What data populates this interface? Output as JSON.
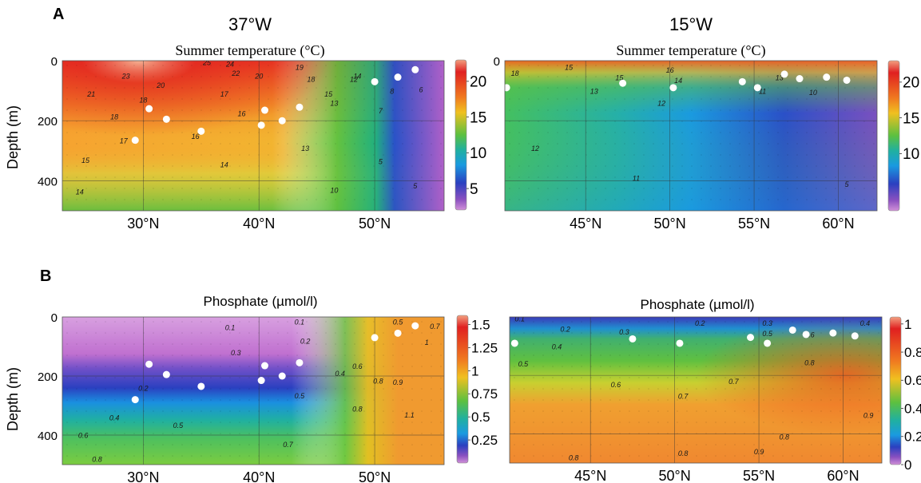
{
  "figure": {
    "panel_labels": [
      "A",
      "B"
    ],
    "column_headers": [
      "37°W",
      "15°W"
    ],
    "depth_label": "Depth (m)"
  },
  "chart_data": [
    {
      "type": "heatmap",
      "panel": "A",
      "section": "37°W",
      "title": "Summer temperature (°C)",
      "ylabel": "Depth (m)",
      "x_range": [
        23,
        56
      ],
      "x_unit": "°N",
      "x_ticks": [
        30,
        40,
        50
      ],
      "x_tick_labels": [
        "30°N",
        "40°N",
        "50°N"
      ],
      "y_range": [
        0,
        500
      ],
      "y_inverted": true,
      "y_ticks": [
        0,
        200,
        400
      ],
      "y_tick_labels": [
        "0",
        "200",
        "400"
      ],
      "colorbar": {
        "range": [
          2,
          23
        ],
        "ticks": [
          20,
          15,
          10,
          5
        ],
        "tick_labels": [
          "20",
          "15",
          "10",
          "5"
        ]
      },
      "contour_labels": [
        {
          "text": "25",
          "lat": 35.5,
          "depth": 15
        },
        {
          "text": "24",
          "lat": 37.5,
          "depth": 20
        },
        {
          "text": "23",
          "lat": 28.5,
          "depth": 60
        },
        {
          "text": "22",
          "lat": 38,
          "depth": 50
        },
        {
          "text": "21",
          "lat": 25.5,
          "depth": 120
        },
        {
          "text": "20",
          "lat": 31.5,
          "depth": 90
        },
        {
          "text": "20",
          "lat": 40,
          "depth": 60
        },
        {
          "text": "19",
          "lat": 43.5,
          "depth": 30
        },
        {
          "text": "18",
          "lat": 30,
          "depth": 140
        },
        {
          "text": "18",
          "lat": 44.5,
          "depth": 70
        },
        {
          "text": "18",
          "lat": 27.5,
          "depth": 195
        },
        {
          "text": "17",
          "lat": 37,
          "depth": 120
        },
        {
          "text": "17",
          "lat": 28.3,
          "depth": 275
        },
        {
          "text": "16",
          "lat": 38.5,
          "depth": 185
        },
        {
          "text": "16",
          "lat": 34.5,
          "depth": 260
        },
        {
          "text": "15",
          "lat": 46,
          "depth": 120
        },
        {
          "text": "15",
          "lat": 25,
          "depth": 340
        },
        {
          "text": "14",
          "lat": 48.5,
          "depth": 60
        },
        {
          "text": "14",
          "lat": 37,
          "depth": 355
        },
        {
          "text": "14",
          "lat": 24.5,
          "depth": 445
        },
        {
          "text": "13",
          "lat": 46.5,
          "depth": 150
        },
        {
          "text": "13",
          "lat": 44,
          "depth": 300
        },
        {
          "text": "12",
          "lat": 48.2,
          "depth": 70
        },
        {
          "text": "10",
          "lat": 46.5,
          "depth": 440
        },
        {
          "text": "8",
          "lat": 51.5,
          "depth": 110
        },
        {
          "text": "7",
          "lat": 50.5,
          "depth": 175
        },
        {
          "text": "6",
          "lat": 54,
          "depth": 105
        },
        {
          "text": "5",
          "lat": 50.5,
          "depth": 345
        },
        {
          "text": "5",
          "lat": 53.5,
          "depth": 425
        }
      ],
      "stations": [
        {
          "lat": 29.3,
          "depth": 265
        },
        {
          "lat": 30.5,
          "depth": 160
        },
        {
          "lat": 32,
          "depth": 195
        },
        {
          "lat": 35,
          "depth": 235
        },
        {
          "lat": 40.2,
          "depth": 215
        },
        {
          "lat": 40.5,
          "depth": 165
        },
        {
          "lat": 42,
          "depth": 200
        },
        {
          "lat": 43.5,
          "depth": 155
        },
        {
          "lat": 50,
          "depth": 70
        },
        {
          "lat": 52,
          "depth": 55
        },
        {
          "lat": 53.5,
          "depth": 30
        }
      ]
    },
    {
      "type": "heatmap",
      "panel": "A",
      "section": "15°W",
      "title": "Summer temperature (°C)",
      "x_range": [
        40.2,
        62.3
      ],
      "x_unit": "°N",
      "x_ticks": [
        45,
        50,
        55,
        60
      ],
      "x_tick_labels": [
        "45°N",
        "50°N",
        "55°N",
        "60°N"
      ],
      "y_range": [
        0,
        500
      ],
      "y_inverted": true,
      "y_ticks": [
        0,
        200,
        400
      ],
      "y_tick_labels": [
        "0",
        "",
        ""
      ],
      "colorbar": {
        "range": [
          2,
          23
        ],
        "ticks": [
          20,
          15,
          10
        ],
        "tick_labels": [
          "20",
          "15",
          "10"
        ]
      },
      "contour_labels": [
        {
          "text": "18",
          "lat": 40.8,
          "depth": 50
        },
        {
          "text": "15",
          "lat": 44,
          "depth": 30
        },
        {
          "text": "15",
          "lat": 47,
          "depth": 65
        },
        {
          "text": "16",
          "lat": 50,
          "depth": 40
        },
        {
          "text": "14",
          "lat": 50.5,
          "depth": 75
        },
        {
          "text": "13",
          "lat": 45.5,
          "depth": 110
        },
        {
          "text": "12",
          "lat": 49.5,
          "depth": 150
        },
        {
          "text": "11",
          "lat": 55.5,
          "depth": 110
        },
        {
          "text": "13",
          "lat": 56.5,
          "depth": 65
        },
        {
          "text": "10",
          "lat": 58.5,
          "depth": 115
        },
        {
          "text": "12",
          "lat": 42,
          "depth": 300
        },
        {
          "text": "11",
          "lat": 48,
          "depth": 400
        },
        {
          "text": "5",
          "lat": 60.5,
          "depth": 420
        }
      ],
      "stations": [
        {
          "lat": 40.3,
          "depth": 90
        },
        {
          "lat": 47.2,
          "depth": 75
        },
        {
          "lat": 50.2,
          "depth": 90
        },
        {
          "lat": 54.3,
          "depth": 70
        },
        {
          "lat": 55.2,
          "depth": 90
        },
        {
          "lat": 56.8,
          "depth": 45
        },
        {
          "lat": 57.7,
          "depth": 60
        },
        {
          "lat": 59.3,
          "depth": 55
        },
        {
          "lat": 60.5,
          "depth": 65
        }
      ]
    },
    {
      "type": "heatmap",
      "panel": "B",
      "section": "37°W",
      "title": "Phosphate (µmol/l)",
      "ylabel": "Depth (m)",
      "x_range": [
        23,
        56
      ],
      "x_unit": "°N",
      "x_ticks": [
        30,
        40,
        50
      ],
      "x_tick_labels": [
        "30°N",
        "40°N",
        "50°N"
      ],
      "y_range": [
        0,
        500
      ],
      "y_inverted": true,
      "y_ticks": [
        0,
        200,
        400
      ],
      "y_tick_labels": [
        "0",
        "200",
        "400"
      ],
      "colorbar": {
        "range": [
          0,
          1.6
        ],
        "ticks": [
          1.5,
          1.25,
          1,
          0.75,
          0.5,
          0.25
        ],
        "tick_labels": [
          "1.5",
          "1.25",
          "1",
          "0.75",
          "0.5",
          "0.25"
        ]
      },
      "contour_labels": [
        {
          "text": "0.1",
          "lat": 37.5,
          "depth": 45
        },
        {
          "text": "0.1",
          "lat": 43.5,
          "depth": 25
        },
        {
          "text": "0.2",
          "lat": 44,
          "depth": 90
        },
        {
          "text": "0.3",
          "lat": 38,
          "depth": 130
        },
        {
          "text": "0.2",
          "lat": 30,
          "depth": 250
        },
        {
          "text": "0.4",
          "lat": 47,
          "depth": 200
        },
        {
          "text": "0.5",
          "lat": 43.5,
          "depth": 275
        },
        {
          "text": "0.5",
          "lat": 52,
          "depth": 25
        },
        {
          "text": "0.6",
          "lat": 48.5,
          "depth": 175
        },
        {
          "text": "0.7",
          "lat": 55.2,
          "depth": 40
        },
        {
          "text": "1",
          "lat": 54.5,
          "depth": 95
        },
        {
          "text": "0.4",
          "lat": 27.5,
          "depth": 350
        },
        {
          "text": "0.5",
          "lat": 33,
          "depth": 375
        },
        {
          "text": "0.6",
          "lat": 24.8,
          "depth": 410
        },
        {
          "text": "0.8",
          "lat": 50.3,
          "depth": 225
        },
        {
          "text": "0.9",
          "lat": 52,
          "depth": 230
        },
        {
          "text": "0.8",
          "lat": 48.5,
          "depth": 320
        },
        {
          "text": "1.1",
          "lat": 53,
          "depth": 340
        },
        {
          "text": "0.7",
          "lat": 42.5,
          "depth": 440
        },
        {
          "text": "0.8",
          "lat": 26,
          "depth": 490
        }
      ],
      "stations": [
        {
          "lat": 29.3,
          "depth": 280
        },
        {
          "lat": 30.5,
          "depth": 160
        },
        {
          "lat": 32,
          "depth": 195
        },
        {
          "lat": 35,
          "depth": 235
        },
        {
          "lat": 40.2,
          "depth": 215
        },
        {
          "lat": 40.5,
          "depth": 165
        },
        {
          "lat": 42,
          "depth": 200
        },
        {
          "lat": 43.5,
          "depth": 155
        },
        {
          "lat": 50,
          "depth": 70
        },
        {
          "lat": 52,
          "depth": 55
        },
        {
          "lat": 53.5,
          "depth": 30
        }
      ]
    },
    {
      "type": "heatmap",
      "panel": "B",
      "section": "15°W",
      "title": "Phosphate (µmol/l)",
      "x_range": [
        40.2,
        62.3
      ],
      "x_unit": "°N",
      "x_ticks": [
        45,
        50,
        55,
        60
      ],
      "x_tick_labels": [
        "45°N",
        "50°N",
        "55°N",
        "60°N"
      ],
      "y_range": [
        0,
        500
      ],
      "y_inverted": true,
      "y_ticks": [
        0,
        200,
        400
      ],
      "y_tick_labels": [
        "",
        "",
        ""
      ],
      "colorbar": {
        "range": [
          0,
          1.05
        ],
        "ticks": [
          1,
          0.8,
          0.6,
          0.4,
          0.2,
          0
        ],
        "tick_labels": [
          "1",
          "0.8",
          "0.6",
          "0.4",
          "0.2",
          "0"
        ]
      },
      "contour_labels": [
        {
          "text": "0.1",
          "lat": 40.8,
          "depth": 15
        },
        {
          "text": "0.2",
          "lat": 43.5,
          "depth": 50
        },
        {
          "text": "0.3",
          "lat": 47,
          "depth": 60
        },
        {
          "text": "0.2",
          "lat": 51.5,
          "depth": 30
        },
        {
          "text": "0.3",
          "lat": 55.5,
          "depth": 30
        },
        {
          "text": "0.5",
          "lat": 55.5,
          "depth": 65
        },
        {
          "text": "0.6",
          "lat": 58,
          "depth": 70
        },
        {
          "text": "0.4",
          "lat": 61.3,
          "depth": 30
        },
        {
          "text": "0.4",
          "lat": 43,
          "depth": 110
        },
        {
          "text": "0.5",
          "lat": 41,
          "depth": 170
        },
        {
          "text": "0.6",
          "lat": 46.5,
          "depth": 240
        },
        {
          "text": "0.7",
          "lat": 50.5,
          "depth": 280
        },
        {
          "text": "0.7",
          "lat": 53.5,
          "depth": 230
        },
        {
          "text": "0.8",
          "lat": 58,
          "depth": 165
        },
        {
          "text": "0.9",
          "lat": 61.5,
          "depth": 345
        },
        {
          "text": "0.8",
          "lat": 56.5,
          "depth": 420
        },
        {
          "text": "0.8",
          "lat": 50.5,
          "depth": 475
        },
        {
          "text": "0.9",
          "lat": 55,
          "depth": 470
        },
        {
          "text": "0.8",
          "lat": 44,
          "depth": 490
        }
      ],
      "stations": [
        {
          "lat": 40.5,
          "depth": 90
        },
        {
          "lat": 47.5,
          "depth": 75
        },
        {
          "lat": 50.3,
          "depth": 90
        },
        {
          "lat": 54.5,
          "depth": 70
        },
        {
          "lat": 55.5,
          "depth": 90
        },
        {
          "lat": 57,
          "depth": 45
        },
        {
          "lat": 57.8,
          "depth": 60
        },
        {
          "lat": 59.4,
          "depth": 55
        },
        {
          "lat": 60.7,
          "depth": 65
        }
      ]
    }
  ]
}
